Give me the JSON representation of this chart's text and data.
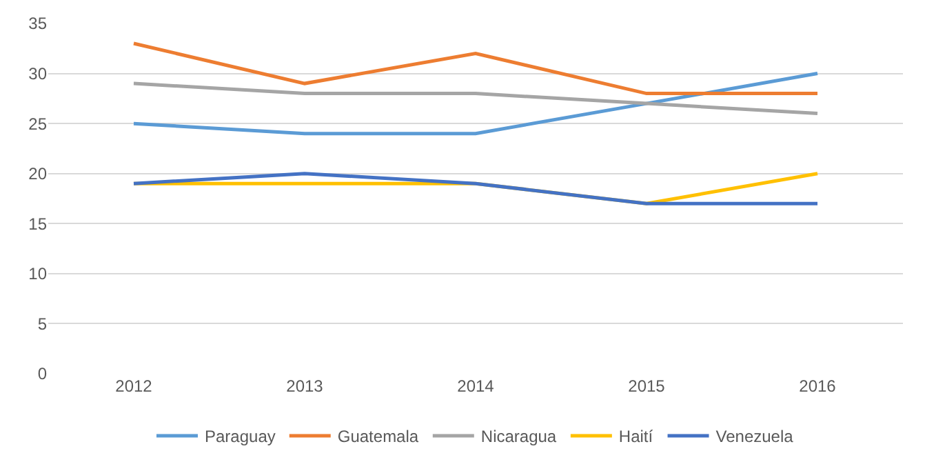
{
  "chart_data": {
    "type": "line",
    "categories": [
      "2012",
      "2013",
      "2014",
      "2015",
      "2016"
    ],
    "series": [
      {
        "name": "Paraguay",
        "color": "#5b9bd5",
        "values": [
          25,
          24,
          24,
          27,
          30
        ]
      },
      {
        "name": "Guatemala",
        "color": "#ed7d31",
        "values": [
          33,
          29,
          32,
          28,
          28
        ]
      },
      {
        "name": "Nicaragua",
        "color": "#a5a5a5",
        "values": [
          29,
          28,
          28,
          27,
          26
        ]
      },
      {
        "name": "Haití",
        "color": "#ffc000",
        "values": [
          19,
          19,
          19,
          17,
          20
        ]
      },
      {
        "name": "Venezuela",
        "color": "#4472c4",
        "values": [
          19,
          20,
          19,
          17,
          17
        ]
      }
    ],
    "ylim": [
      0,
      35
    ],
    "yticks": [
      0,
      5,
      10,
      15,
      20,
      25,
      30,
      35
    ],
    "grid": "y",
    "legend": "bottom",
    "marker": "none",
    "line_style": "solid"
  }
}
